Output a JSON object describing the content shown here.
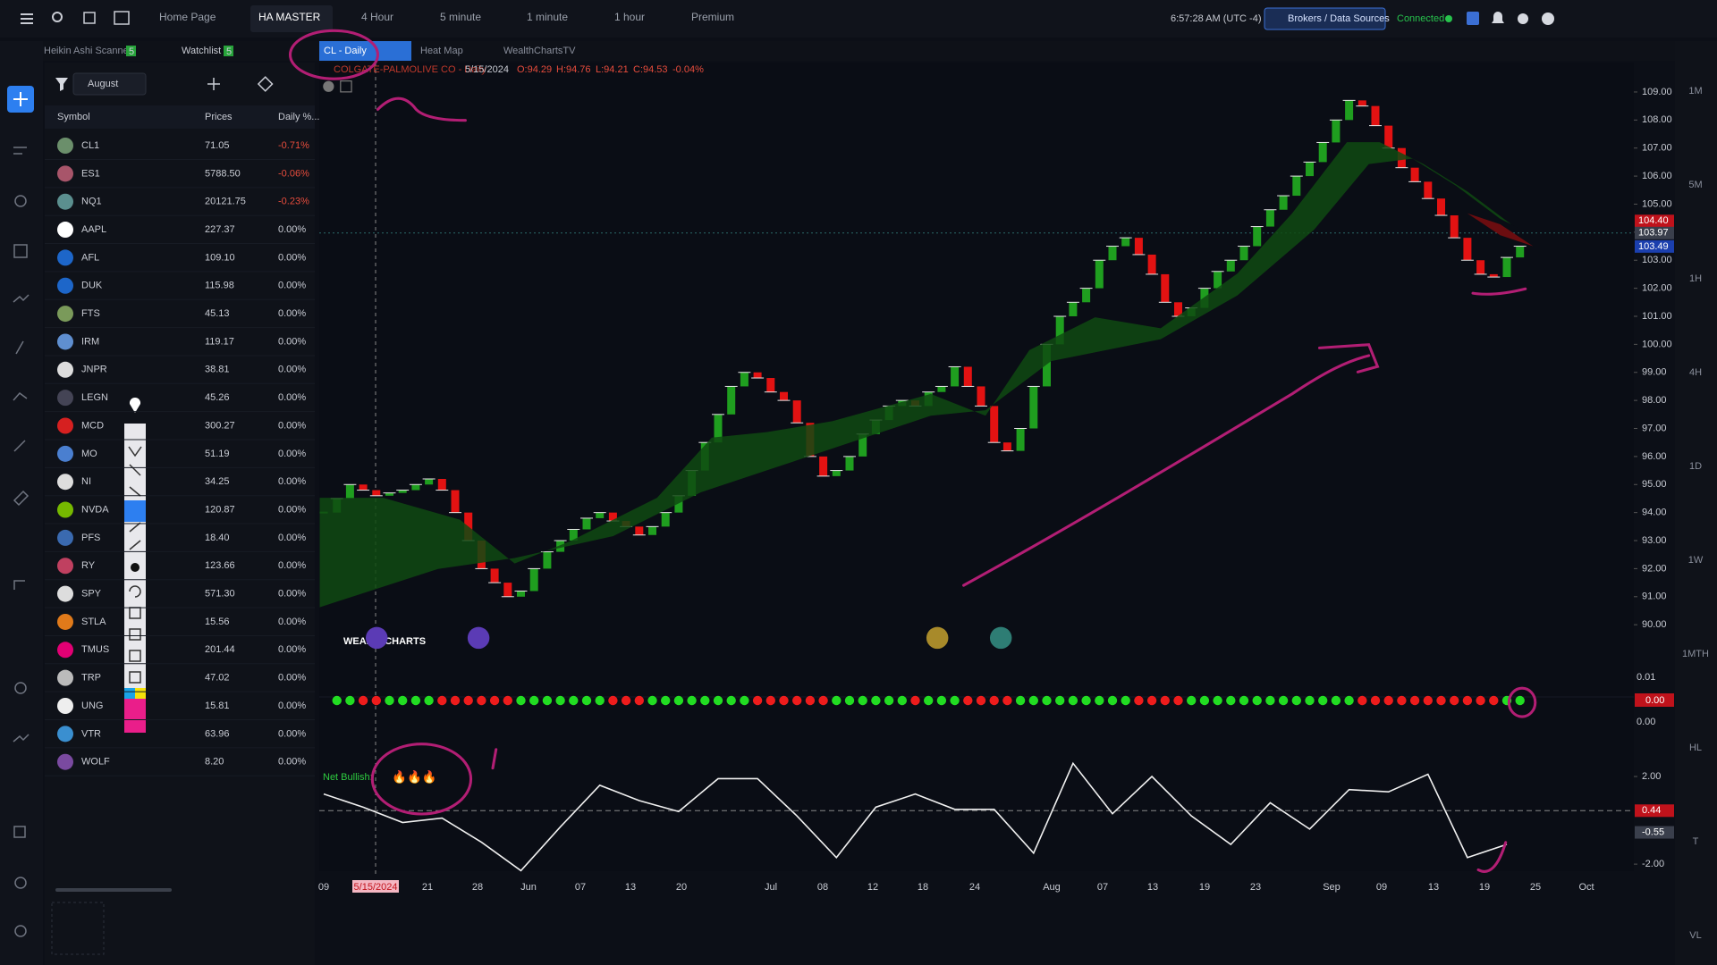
{
  "topbar": {
    "tabs": [
      "Home Page",
      "HA MASTER",
      "4 Hour",
      "5 minute",
      "1 minute",
      "1 hour",
      "Premium"
    ],
    "time": "6:57:28 AM (UTC -4)",
    "brokers": "Brokers / Data Sources",
    "status": "Connected"
  },
  "subbar": {
    "scanner": "Heikin Ashi Scanner",
    "watchlist": "Watchlist",
    "badge": "5",
    "chart_tab": "CL - Daily",
    "heatmap": "Heat Map",
    "tv": "WealthChartsTV"
  },
  "watchlist": {
    "filter": "August",
    "columns": [
      "Symbol",
      "Prices",
      "Daily %..."
    ],
    "rows": [
      [
        "CL1",
        "71.05",
        "-0.71%"
      ],
      [
        "ES1",
        "5788.50",
        "-0.06%"
      ],
      [
        "NQ1",
        "20121.75",
        "-0.23%"
      ],
      [
        "AAPL",
        "227.37",
        "0.00%"
      ],
      [
        "AFL",
        "109.10",
        "0.00%"
      ],
      [
        "DUK",
        "115.98",
        "0.00%"
      ],
      [
        "FTS",
        "45.13",
        "0.00%"
      ],
      [
        "IRM",
        "119.17",
        "0.00%"
      ],
      [
        "JNPR",
        "38.81",
        "0.00%"
      ],
      [
        "LEGN",
        "45.26",
        "0.00%"
      ],
      [
        "MCD",
        "300.27",
        "0.00%"
      ],
      [
        "MO",
        "51.19",
        "0.00%"
      ],
      [
        "NI",
        "34.25",
        "0.00%"
      ],
      [
        "NVDA",
        "120.87",
        "0.00%"
      ],
      [
        "PFS",
        "18.40",
        "0.00%"
      ],
      [
        "RY",
        "123.66",
        "0.00%"
      ],
      [
        "SPY",
        "571.30",
        "0.00%"
      ],
      [
        "STLA",
        "15.56",
        "0.00%"
      ],
      [
        "TMUS",
        "201.44",
        "0.00%"
      ],
      [
        "TRP",
        "47.02",
        "0.00%"
      ],
      [
        "UNG",
        "15.81",
        "0.00%"
      ],
      [
        "VTR",
        "63.96",
        "0.00%"
      ],
      [
        "WOLF",
        "8.20",
        "0.00%"
      ]
    ]
  },
  "timeframes": [
    "1M",
    "5M",
    "1H",
    "4H",
    "1D",
    "1W",
    "1MTH",
    "HL",
    "T",
    "VL"
  ],
  "chart_data": {
    "type": "candlestick",
    "title": "COLGATE-PALMOLIVE CO - Daily",
    "date": "5/15/2024",
    "ohlc": [
      "O:94.29",
      "H:94.76",
      "L:94.21",
      "C:94.53",
      "-0.04%"
    ],
    "brand": "WEALTHCHARTS",
    "closes": [
      94,
      94.5,
      95,
      94.8,
      94.6,
      94.7,
      94.8,
      95,
      95.2,
      94.8,
      94,
      93,
      92,
      91.5,
      91,
      91.2,
      92,
      92.6,
      93,
      93.4,
      93.8,
      94,
      93.7,
      93.5,
      93.2,
      93.5,
      94,
      94.6,
      95.5,
      96.5,
      97.5,
      98.5,
      99,
      98.8,
      98.3,
      98,
      97.2,
      96,
      95.3,
      95.5,
      96,
      96.8,
      97.3,
      97.8,
      98,
      97.8,
      98.3,
      98.5,
      99.2,
      98.5,
      97.8,
      96.5,
      96.2,
      97,
      98.5,
      100,
      101,
      101.5,
      102,
      103,
      103.5,
      103.8,
      103.2,
      102.5,
      101.5,
      101,
      101.3,
      102,
      102.6,
      103,
      103.5,
      104.2,
      104.8,
      105.3,
      106,
      106.5,
      107.2,
      108,
      108.7,
      108.5,
      107.8,
      107,
      106.3,
      105.8,
      105.2,
      104.6,
      103.8,
      103,
      102.5,
      102.4,
      103.1,
      103.5
    ],
    "up_color": "#1f9e1f",
    "down_color": "#e31212",
    "ylim": [
      89.4,
      110.05
    ],
    "yticks": [
      {
        "value": 90,
        "label": "90.00"
      },
      {
        "value": 91,
        "label": "91.00"
      },
      {
        "value": 92,
        "label": "92.00"
      },
      {
        "value": 93,
        "label": "93.00"
      },
      {
        "value": 94,
        "label": "94.00"
      },
      {
        "value": 95,
        "label": "95.00"
      },
      {
        "value": 96,
        "label": "96.00"
      },
      {
        "value": 97,
        "label": "97.00"
      },
      {
        "value": 98,
        "label": "98.00"
      },
      {
        "value": 99,
        "label": "99.00"
      },
      {
        "value": 100,
        "label": "100.00"
      },
      {
        "value": 101,
        "label": "101.00"
      },
      {
        "value": 102,
        "label": "102.00"
      },
      {
        "value": 103,
        "label": "103.00"
      },
      {
        "value": 104,
        "label": "104.00"
      },
      {
        "value": 105,
        "label": "105.00"
      },
      {
        "value": 106,
        "label": "106.00"
      },
      {
        "value": 107,
        "label": "107.00"
      },
      {
        "value": 108,
        "label": "108.00"
      },
      {
        "value": 109,
        "label": "109.00"
      }
    ],
    "price_tags": [
      {
        "value": 104.4,
        "label": "104.40",
        "color": "#c0121b"
      },
      {
        "value": 103.97,
        "label": "103.97",
        "color": "#3a3f4c"
      },
      {
        "value": 103.49,
        "label": "103.49",
        "color": "#1b3fae"
      }
    ],
    "x_labels": [
      "09",
      "5/15/2024",
      "21",
      "28",
      "Jun",
      "07",
      "13",
      "20",
      "Jul",
      "08",
      "12",
      "18",
      "24",
      "Aug",
      "07",
      "13",
      "19",
      "23",
      "Sep",
      "09",
      "13",
      "19",
      "25",
      "Oct"
    ],
    "signal_axis": [
      "0.01",
      "0.00",
      "0.00"
    ],
    "oscillator": {
      "label": "Net Bullish:",
      "values": [
        1.2,
        0.6,
        -0.1,
        0.1,
        -1.0,
        -2.3,
        -0.3,
        1.6,
        0.9,
        0.4,
        1.9,
        1.9,
        0.2,
        -1.7,
        0.6,
        1.2,
        0.5,
        0.5,
        -1.5,
        2.6,
        0.3,
        2.0,
        0.2,
        -1.1,
        0.8,
        -0.4,
        1.4,
        1.3,
        2.1,
        -1.7,
        -1.1
      ],
      "ylim": [
        -2.73,
        2.98
      ],
      "yticks": [
        {
          "value": 2,
          "label": "2.00"
        },
        {
          "value": -2,
          "label": "-2.00"
        }
      ],
      "levels": [
        {
          "value": 0.44,
          "label": "0.44"
        },
        {
          "value": -0.55,
          "label": "-0.55"
        }
      ]
    }
  }
}
